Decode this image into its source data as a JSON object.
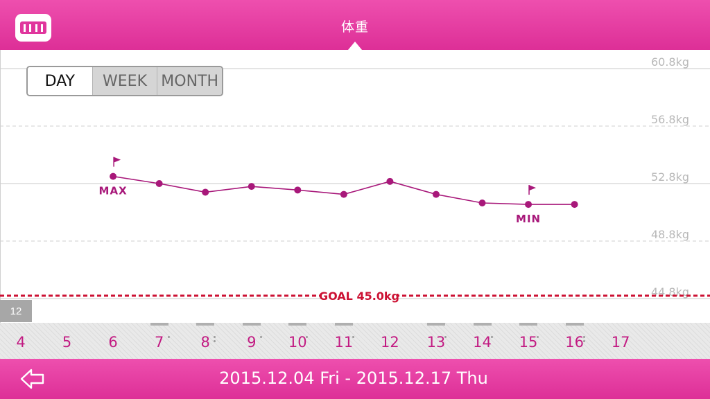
{
  "header": {
    "title": "体重",
    "menu_icon": "measuring-tape-icon"
  },
  "period_tabs": [
    {
      "label": "DAY",
      "active": true
    },
    {
      "label": "WEEK",
      "active": false
    },
    {
      "label": "MONTH",
      "active": false
    }
  ],
  "chart_data": {
    "type": "line",
    "y_tick_labels": [
      "60.8kg",
      "56.8kg",
      "52.8kg",
      "48.8kg",
      "44.8kg"
    ],
    "y_ticks": [
      60.8,
      56.8,
      52.8,
      48.8,
      44.8
    ],
    "ylim": [
      44.8,
      60.8
    ],
    "x": [
      6,
      7,
      8,
      9,
      10,
      11,
      12,
      13,
      14,
      15,
      16
    ],
    "values": [
      53.3,
      52.8,
      52.2,
      52.6,
      52.35,
      52.05,
      52.95,
      52.05,
      51.45,
      51.35,
      51.35
    ],
    "max_label": "MAX",
    "min_label": "MIN",
    "max_index": 0,
    "min_index": 9,
    "goal": {
      "label": "GOAL 45.0kg",
      "value": 45.0
    },
    "line_color": "#a8187a",
    "goal_color": "#cc1133",
    "grid": true
  },
  "month_label": "12",
  "days": [
    "4",
    "5",
    "6",
    "7",
    "8",
    "9",
    "10",
    "11",
    "12",
    "13",
    "14",
    "15",
    "16",
    "17"
  ],
  "day_markers": [
    "",
    "",
    "",
    "dot",
    "double",
    "dot",
    "dot",
    "dot",
    "",
    "dot",
    "dot",
    "dot",
    "double",
    ""
  ],
  "footer": {
    "date_range": "2015.12.04 Fri - 2015.12.17 Thu",
    "back_icon": "back-arrow-icon"
  },
  "colors": {
    "accent": "#e23a9f",
    "day_text": "#c21a82"
  }
}
